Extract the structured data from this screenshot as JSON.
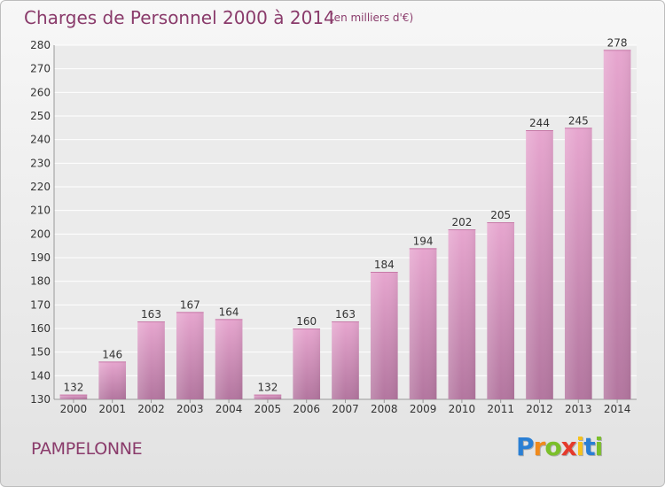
{
  "header": {
    "title": "Charges de Personnel 2000 à 2014",
    "subtitle": "(en milliers d'€)"
  },
  "footer": {
    "commune": "PAMPELONNE",
    "logo_letters": [
      {
        "char": "P",
        "color": "#2a7fd4"
      },
      {
        "char": "r",
        "color": "#f08a1c"
      },
      {
        "char": "o",
        "color": "#7bbf2a"
      },
      {
        "char": "x",
        "color": "#e53a2c"
      },
      {
        "char": "i",
        "color": "#f6c21c"
      },
      {
        "char": "t",
        "color": "#2a7fd4"
      },
      {
        "char": "i",
        "color": "#7bbf2a"
      }
    ]
  },
  "colors": {
    "bar_top": "#e7a6cf",
    "bar_bottom": "#b3769f",
    "text": "#333333",
    "accent": "#8a3b6b"
  },
  "chart_data": {
    "type": "bar",
    "title": "Charges de Personnel 2000 à 2014",
    "subtitle": "(en milliers d'€)",
    "categories": [
      "2000",
      "2001",
      "2002",
      "2003",
      "2004",
      "2005",
      "2006",
      "2007",
      "2008",
      "2009",
      "2010",
      "2011",
      "2012",
      "2013",
      "2014"
    ],
    "values": [
      132,
      146,
      163,
      167,
      164,
      132,
      160,
      163,
      184,
      194,
      202,
      205,
      244,
      245,
      278
    ],
    "ylim": [
      130,
      280
    ],
    "yticks": [
      130,
      140,
      150,
      160,
      170,
      180,
      190,
      200,
      210,
      220,
      230,
      240,
      250,
      260,
      270,
      280
    ],
    "grid": true,
    "data_labels": true
  }
}
